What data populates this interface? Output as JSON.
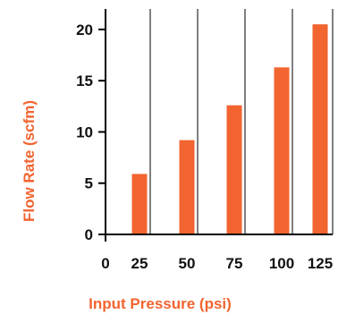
{
  "chart_data": {
    "type": "bar",
    "x": [
      0,
      25,
      50,
      75,
      100,
      125
    ],
    "categories": [
      "0",
      "25",
      "50",
      "75",
      "100",
      "125"
    ],
    "values": [
      0,
      5.9,
      9.2,
      12.6,
      16.3,
      20.5
    ],
    "xlabel": "Input Pressure (psi)",
    "ylabel": "Flow Rate  (scfm)",
    "ylim": [
      0,
      22
    ],
    "yticks": [
      0,
      5,
      10,
      15,
      20
    ],
    "ytick_labels": [
      "0",
      "5",
      "10",
      "15",
      "20"
    ],
    "grid": "vertical",
    "legend": "none"
  },
  "colors": {
    "bar": "#f26430",
    "axis_title": "#f26430",
    "axis": "#000000",
    "grid": "#000000",
    "tick_text": "#111111"
  }
}
